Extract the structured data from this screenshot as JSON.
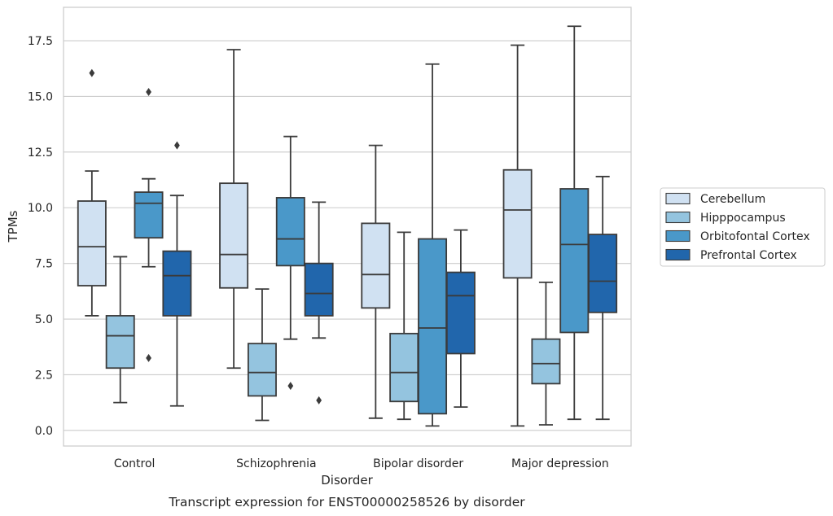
{
  "chart_data": {
    "type": "boxplot",
    "title": "",
    "caption": "Transcript expression for ENST00000258526 by disorder",
    "xlabel": "Disorder",
    "ylabel": "TPMs",
    "ylim": [
      -0.7,
      19.0
    ],
    "yticks": [
      0.0,
      2.5,
      5.0,
      7.5,
      10.0,
      12.5,
      15.0,
      17.5
    ],
    "ytick_labels": [
      "0.0",
      "2.5",
      "5.0",
      "7.5",
      "10.0",
      "12.5",
      "15.0",
      "17.5"
    ],
    "grid": "horizontal",
    "legend_position": "right",
    "categories": [
      "Control",
      "Schizophrenia",
      "Bipolar disorder",
      "Major depression"
    ],
    "series": [
      {
        "name": "Cerebellum",
        "color": "#d0e1f2",
        "boxes": [
          {
            "whislo": 5.15,
            "q1": 6.5,
            "med": 8.25,
            "q3": 10.3,
            "whishi": 11.65,
            "fliers": [
              16.05
            ]
          },
          {
            "whislo": 2.8,
            "q1": 6.4,
            "med": 7.9,
            "q3": 11.1,
            "whishi": 17.1,
            "fliers": []
          },
          {
            "whislo": 0.55,
            "q1": 5.5,
            "med": 7.0,
            "q3": 9.3,
            "whishi": 12.8,
            "fliers": []
          },
          {
            "whislo": 0.2,
            "q1": 6.85,
            "med": 9.9,
            "q3": 11.7,
            "whishi": 17.3,
            "fliers": []
          }
        ]
      },
      {
        "name": "Hipppocampus",
        "color": "#94c4df",
        "boxes": [
          {
            "whislo": 1.25,
            "q1": 2.8,
            "med": 4.25,
            "q3": 5.15,
            "whishi": 7.8,
            "fliers": []
          },
          {
            "whislo": 0.45,
            "q1": 1.55,
            "med": 2.6,
            "q3": 3.9,
            "whishi": 6.35,
            "fliers": []
          },
          {
            "whislo": 0.5,
            "q1": 1.3,
            "med": 2.6,
            "q3": 4.35,
            "whishi": 8.9,
            "fliers": []
          },
          {
            "whislo": 0.25,
            "q1": 2.1,
            "med": 3.0,
            "q3": 4.1,
            "whishi": 6.65,
            "fliers": []
          }
        ]
      },
      {
        "name": "Orbitofontal Cortex",
        "color": "#4a98c9",
        "boxes": [
          {
            "whislo": 7.35,
            "q1": 8.65,
            "med": 10.2,
            "q3": 10.7,
            "whishi": 11.3,
            "fliers": [
              15.2,
              3.25
            ]
          },
          {
            "whislo": 4.1,
            "q1": 7.4,
            "med": 8.6,
            "q3": 10.45,
            "whishi": 13.2,
            "fliers": [
              2.0
            ]
          },
          {
            "whislo": 0.2,
            "q1": 0.75,
            "med": 4.6,
            "q3": 8.6,
            "whishi": 16.45,
            "fliers": []
          },
          {
            "whislo": 0.5,
            "q1": 4.4,
            "med": 8.35,
            "q3": 10.85,
            "whishi": 18.15,
            "fliers": []
          }
        ]
      },
      {
        "name": "Prefrontal Cortex",
        "color": "#2166ac",
        "boxes": [
          {
            "whislo": 1.1,
            "q1": 5.15,
            "med": 6.95,
            "q3": 8.05,
            "whishi": 10.55,
            "fliers": [
              12.8
            ]
          },
          {
            "whislo": 4.15,
            "q1": 5.15,
            "med": 6.15,
            "q3": 7.5,
            "whishi": 10.25,
            "fliers": [
              1.35
            ]
          },
          {
            "whislo": 1.05,
            "q1": 3.45,
            "med": 6.05,
            "q3": 7.1,
            "whishi": 9.0,
            "fliers": []
          },
          {
            "whislo": 0.5,
            "q1": 5.3,
            "med": 6.7,
            "q3": 8.8,
            "whishi": 11.4,
            "fliers": []
          }
        ]
      }
    ]
  }
}
